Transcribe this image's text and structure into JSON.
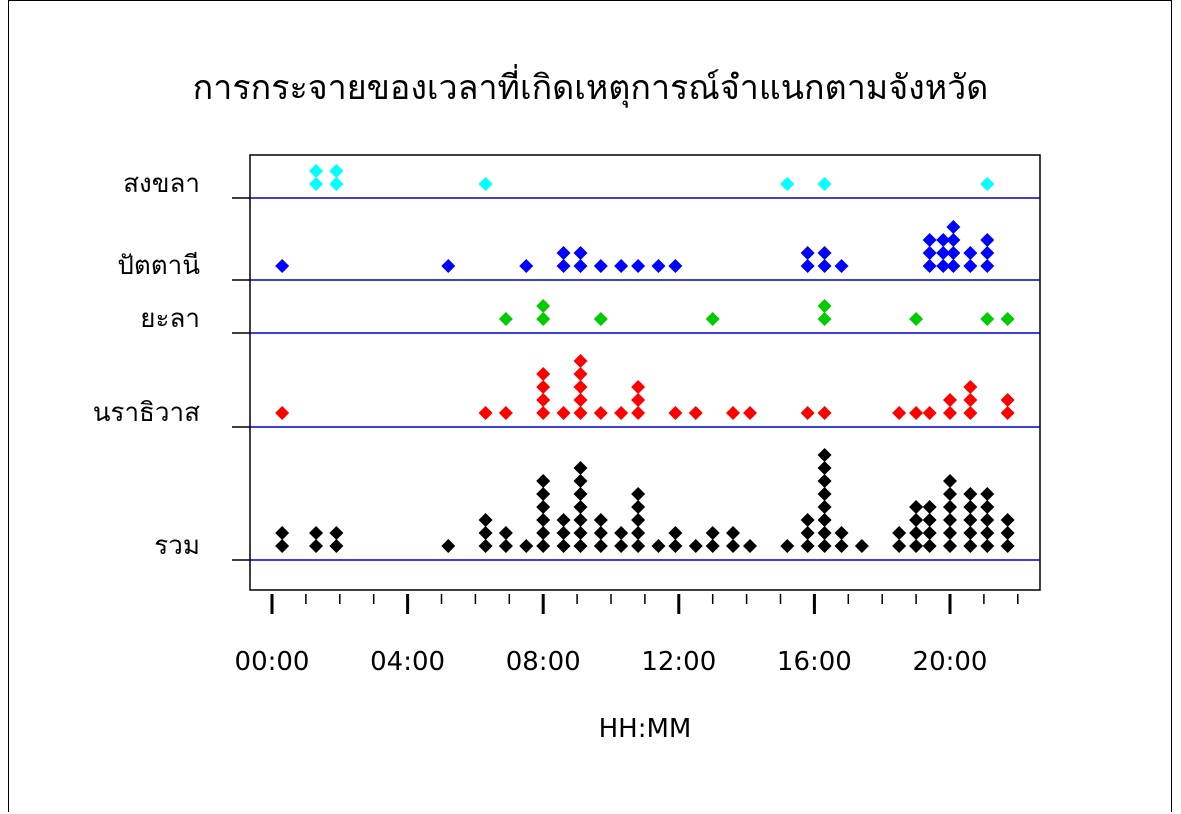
{
  "chart_data": {
    "type": "scatter",
    "title": "การกระจายของเวลาที่เกิดเหตุการณ์จำแนกตามจังหวัด",
    "xlabel": "HH:MM",
    "ylabel": "",
    "x_unit": "hours",
    "xlim": [
      0,
      23
    ],
    "x_ticks": [
      0,
      4,
      8,
      12,
      16,
      20
    ],
    "x_tick_labels": [
      "00:00",
      "04:00",
      "08:00",
      "12:00",
      "16:00",
      "20:00"
    ],
    "grid": false,
    "legend": "none",
    "stack": "dot-plot (points stacked vertically per hour)",
    "series": [
      {
        "name": "สงขลา",
        "color": "#00ffff",
        "points": [
          [
            1.3,
            2
          ],
          [
            1.9,
            2
          ],
          [
            6.3,
            1
          ],
          [
            15.2,
            1
          ],
          [
            16.3,
            1
          ],
          [
            21.1,
            1
          ]
        ]
      },
      {
        "name": "ปัตตานี",
        "color": "#0000ff",
        "points": [
          [
            0.3,
            1
          ],
          [
            5.2,
            1
          ],
          [
            7.5,
            1
          ],
          [
            8.6,
            2
          ],
          [
            9.1,
            2
          ],
          [
            9.7,
            1
          ],
          [
            10.3,
            1
          ],
          [
            10.8,
            1
          ],
          [
            11.4,
            1
          ],
          [
            11.9,
            1
          ],
          [
            15.8,
            2
          ],
          [
            16.3,
            2
          ],
          [
            16.8,
            1
          ],
          [
            19.4,
            3
          ],
          [
            19.8,
            3
          ],
          [
            20.1,
            4
          ],
          [
            20.6,
            2
          ],
          [
            21.1,
            3
          ]
        ]
      },
      {
        "name": "ยะลา",
        "color": "#00cc00",
        "points": [
          [
            6.9,
            1
          ],
          [
            8.0,
            2
          ],
          [
            9.7,
            1
          ],
          [
            13.0,
            1
          ],
          [
            16.3,
            2
          ],
          [
            19.0,
            1
          ],
          [
            21.1,
            1
          ],
          [
            21.7,
            1
          ]
        ]
      },
      {
        "name": "นราธิวาส",
        "color": "#ff0000",
        "points": [
          [
            0.3,
            1
          ],
          [
            6.3,
            1
          ],
          [
            6.9,
            1
          ],
          [
            8.0,
            4
          ],
          [
            8.6,
            1
          ],
          [
            9.1,
            5
          ],
          [
            9.7,
            1
          ],
          [
            10.3,
            1
          ],
          [
            10.8,
            3
          ],
          [
            11.9,
            1
          ],
          [
            12.5,
            1
          ],
          [
            13.6,
            1
          ],
          [
            14.1,
            1
          ],
          [
            15.8,
            1
          ],
          [
            16.3,
            1
          ],
          [
            18.5,
            1
          ],
          [
            19.0,
            1
          ],
          [
            19.4,
            1
          ],
          [
            20.0,
            2
          ],
          [
            20.6,
            3
          ],
          [
            21.7,
            2
          ]
        ]
      },
      {
        "name": "รวม",
        "color": "#000000",
        "points": [
          [
            0.3,
            2
          ],
          [
            1.3,
            2
          ],
          [
            1.9,
            2
          ],
          [
            5.2,
            1
          ],
          [
            6.3,
            3
          ],
          [
            6.9,
            2
          ],
          [
            7.5,
            1
          ],
          [
            8.0,
            6
          ],
          [
            8.6,
            3
          ],
          [
            9.1,
            7
          ],
          [
            9.7,
            3
          ],
          [
            10.3,
            2
          ],
          [
            10.8,
            5
          ],
          [
            11.4,
            1
          ],
          [
            11.9,
            2
          ],
          [
            12.5,
            1
          ],
          [
            13.0,
            2
          ],
          [
            13.6,
            2
          ],
          [
            14.1,
            1
          ],
          [
            15.2,
            1
          ],
          [
            15.8,
            3
          ],
          [
            16.3,
            8
          ],
          [
            16.8,
            2
          ],
          [
            17.4,
            1
          ],
          [
            18.5,
            2
          ],
          [
            19.0,
            4
          ],
          [
            19.4,
            4
          ],
          [
            20.0,
            6
          ],
          [
            20.6,
            5
          ],
          [
            21.1,
            5
          ],
          [
            21.7,
            3
          ]
        ]
      }
    ]
  }
}
